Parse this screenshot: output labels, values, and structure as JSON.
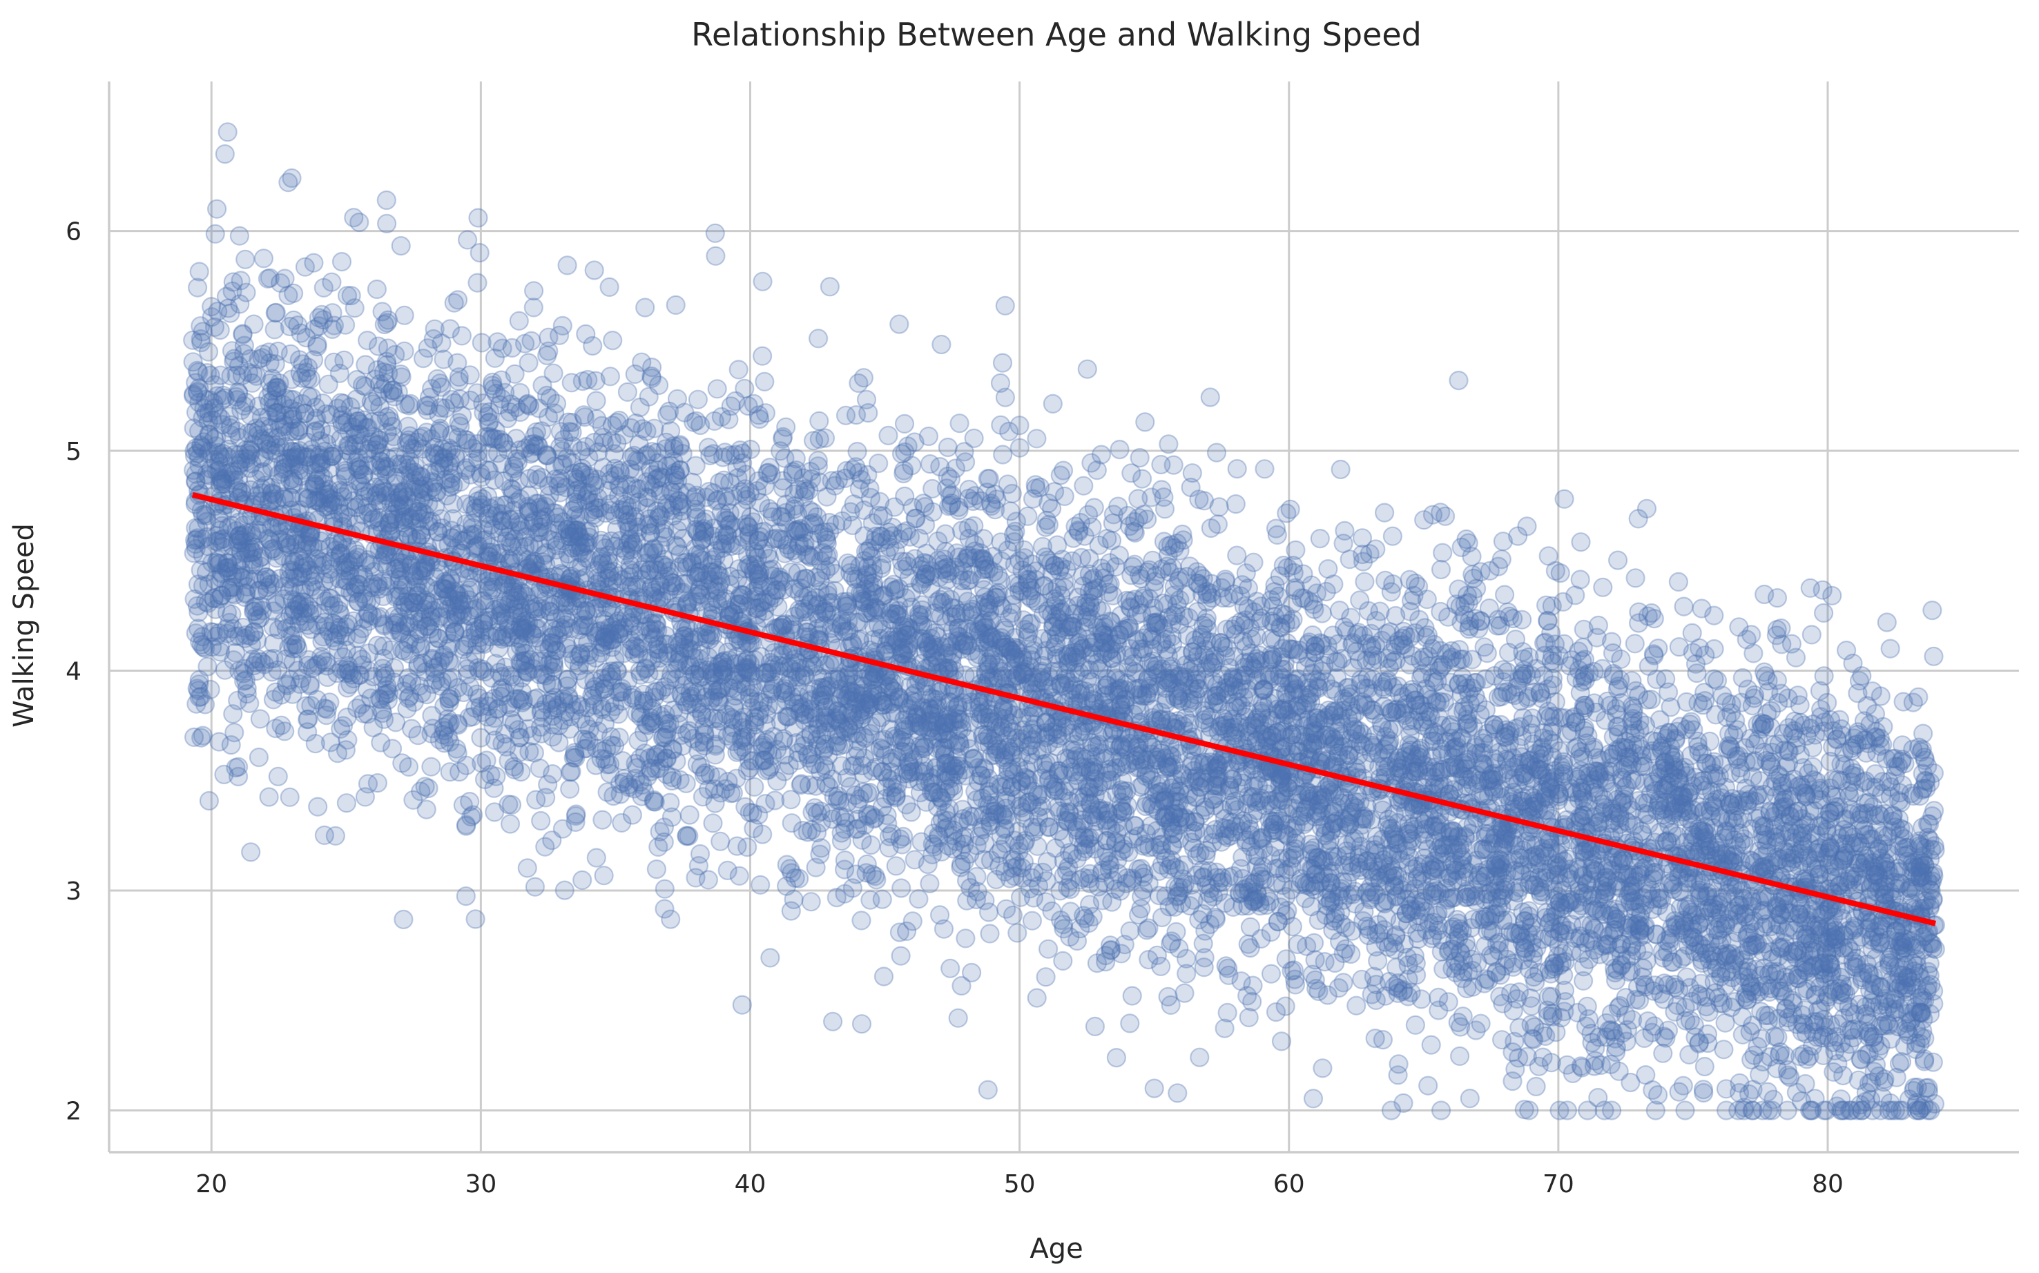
{
  "chart_data": {
    "type": "scatter",
    "title": "Relationship Between Age and Walking Speed",
    "xlabel": "Age",
    "ylabel": "Walking Speed",
    "xlim": [
      16.2,
      87.1
    ],
    "ylim": [
      1.81,
      6.68
    ],
    "xticks": [
      20,
      30,
      40,
      50,
      60,
      70,
      80
    ],
    "yticks": [
      2,
      3,
      4,
      5,
      6
    ],
    "grid": true,
    "legend": "none",
    "point_color": "#4c72b0",
    "point_opacity": 0.22,
    "line_color": "#ff0000",
    "regression": {
      "x": [
        19.3,
        84.0
      ],
      "y": [
        4.8,
        2.85
      ]
    },
    "point_cloud": {
      "count": 10000,
      "x_range": [
        19.3,
        84.0
      ],
      "y_floor": 2.0,
      "residual_sd": 0.5
    },
    "notable_points": [
      {
        "x": 20.6,
        "y": 6.45
      },
      {
        "x": 20.5,
        "y": 6.35
      },
      {
        "x": 26.5,
        "y": 6.14
      },
      {
        "x": 20.2,
        "y": 6.1
      },
      {
        "x": 29.9,
        "y": 6.06
      },
      {
        "x": 38.7,
        "y": 5.99
      },
      {
        "x": 66.3,
        "y": 5.32
      },
      {
        "x": 82.2,
        "y": 4.22
      },
      {
        "x": 39.7,
        "y": 2.48
      },
      {
        "x": 55.0,
        "y": 2.1
      },
      {
        "x": 29.8,
        "y": 2.87
      },
      {
        "x": 63.8,
        "y": 2.0
      }
    ]
  }
}
